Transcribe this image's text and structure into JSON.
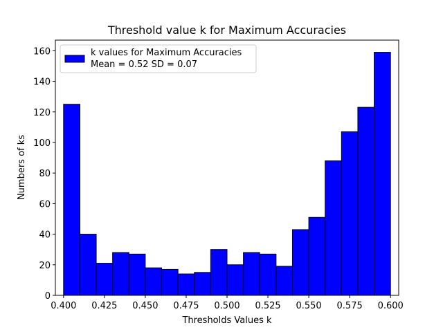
{
  "chart_data": {
    "type": "bar",
    "title": "Threshold value k for Maximum Accuracies",
    "xlabel": "Thresholds Values k",
    "ylabel": "Numbers of ks",
    "bin_start": 0.4,
    "bin_width": 0.01,
    "values": [
      125,
      40,
      21,
      28,
      27,
      18,
      17,
      14,
      15,
      30,
      20,
      28,
      27,
      19,
      43,
      51,
      88,
      107,
      123,
      159
    ],
    "xlim": [
      0.395,
      0.605
    ],
    "ylim": [
      0,
      166.95
    ],
    "xticks": [
      "0.400",
      "0.425",
      "0.450",
      "0.475",
      "0.500",
      "0.525",
      "0.550",
      "0.575",
      "0.600"
    ],
    "yticks": [
      "0",
      "20",
      "40",
      "60",
      "80",
      "100",
      "120",
      "140",
      "160"
    ],
    "grid": false,
    "legend": {
      "placement": "upper left",
      "entries": [
        {
          "line1": "k values for Maximum Accuracies",
          "line2": "Mean = 0.52 SD = 0.07",
          "color": "#0000ff"
        }
      ]
    },
    "bar_color": "#0000ff",
    "edge_color": "#000000"
  }
}
